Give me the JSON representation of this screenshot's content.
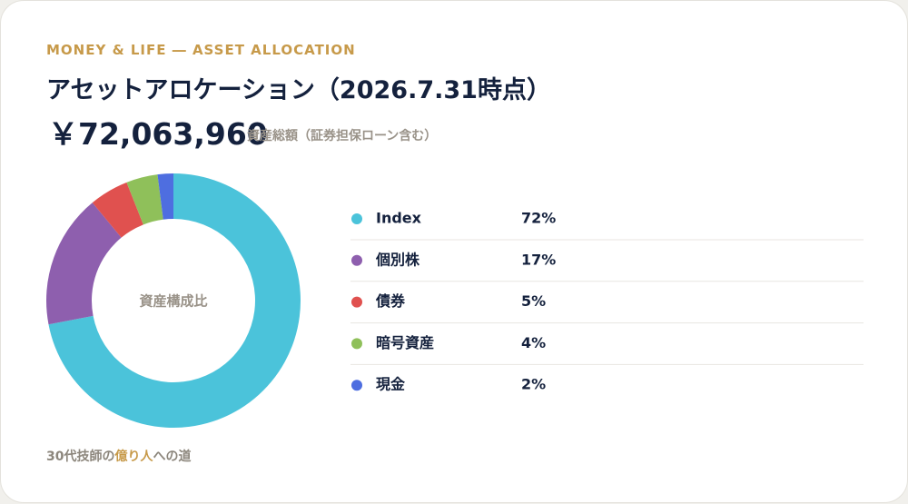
{
  "header": {
    "eyebrow": "MONEY & LIFE ― ASSET ALLOCATION",
    "title": "アセットアロケーション（2026.7.31時点）",
    "total": "￥72,063,960",
    "total_label": "資産総額（証券担保ローン含む）"
  },
  "chart_data": {
    "type": "pie",
    "donut": true,
    "center_label": "資産構成比",
    "categories": [
      "Index",
      "個別株",
      "債券",
      "暗号資産",
      "現金"
    ],
    "values": [
      72,
      17,
      5,
      4,
      2
    ],
    "value_labels": [
      "72%",
      "17%",
      "5%",
      "4%",
      "2%"
    ],
    "colors": [
      "#4bc3da",
      "#8e5fae",
      "#e0514f",
      "#8fc05a",
      "#4e6ee0"
    ]
  },
  "footer": [
    "30代技師の",
    "億り人",
    "への道"
  ]
}
